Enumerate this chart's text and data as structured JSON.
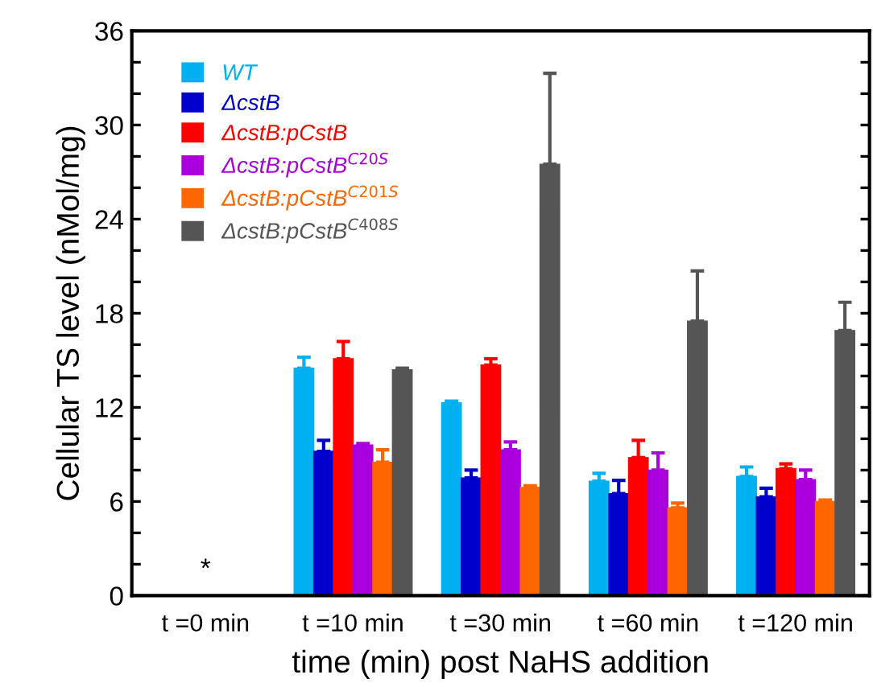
{
  "chart_data": {
    "type": "bar",
    "xlabel": "time (min) post NaHS addition",
    "ylabel": "Cellular TS level (nMol/mg)",
    "categories": [
      "t =0 min",
      "t =10 min",
      "t =30 min",
      "t =60 min",
      "t =120 min"
    ],
    "series": [
      {
        "name": "WT",
        "color": "#00b0f0",
        "values": [
          null,
          14.5,
          12.3,
          7.3,
          7.6
        ],
        "errors": [
          null,
          [
            14.5,
            15.2
          ],
          [
            12.3,
            12.4
          ],
          [
            7.3,
            7.8
          ],
          [
            7.6,
            8.2
          ]
        ]
      },
      {
        "name": "ΔcstB",
        "color": "#0000cc",
        "values": [
          null,
          9.2,
          7.5,
          6.5,
          6.3
        ],
        "errors": [
          null,
          [
            9.2,
            9.9
          ],
          [
            7.5,
            8.0
          ],
          [
            6.5,
            7.35
          ],
          [
            6.3,
            6.85
          ]
        ]
      },
      {
        "name": "ΔcstB:pCstB",
        "color": "#ff0000",
        "values": [
          null,
          15.1,
          14.7,
          8.8,
          8.1
        ],
        "errors": [
          null,
          [
            15.1,
            16.2
          ],
          [
            14.7,
            15.1
          ],
          [
            8.8,
            9.9
          ],
          [
            8.1,
            8.4
          ]
        ]
      },
      {
        "name": "ΔcstB:pCstB$^{C20S}$",
        "color": "#aa00dd",
        "values": [
          null,
          9.6,
          9.3,
          8.0,
          7.4
        ],
        "errors": [
          null,
          [
            9.6,
            9.7
          ],
          [
            9.3,
            9.8
          ],
          [
            8.0,
            9.1
          ],
          [
            7.4,
            8.0
          ]
        ]
      },
      {
        "name": "ΔcstB:pCstB$^{C201S}$",
        "color": "#ff6600",
        "values": [
          null,
          8.5,
          6.9,
          5.6,
          6.0
        ],
        "errors": [
          null,
          [
            8.5,
            9.3
          ],
          [
            6.9,
            7.0
          ],
          [
            5.6,
            5.9
          ],
          [
            6.0,
            6.1
          ]
        ]
      },
      {
        "name": "ΔcstB:pCstB$^{C408S}$",
        "color": "#555555",
        "values": [
          null,
          14.4,
          27.5,
          17.5,
          16.9
        ],
        "errors": [
          null,
          [
            14.4,
            14.5
          ],
          [
            27.5,
            33.3
          ],
          [
            17.5,
            20.7
          ],
          [
            16.9,
            18.7
          ]
        ]
      }
    ],
    "ylim": [
      0,
      36
    ],
    "yticks": [
      0,
      {
        "value": 2,
        "label": null
      },
      {
        "value": 4,
        "label": null
      },
      6,
      {
        "value": 8,
        "label": null
      },
      {
        "value": 10,
        "label": null
      },
      12,
      {
        "value": 14,
        "label": null
      },
      {
        "value": 16,
        "label": null
      },
      18,
      {
        "value": 20,
        "label": null
      },
      {
        "value": 22,
        "label": null
      },
      24,
      {
        "value": 26,
        "label": null
      },
      {
        "value": 28,
        "label": null
      },
      30,
      {
        "value": 32,
        "label": null
      },
      {
        "value": 34,
        "label": null
      },
      36
    ],
    "annotations": [
      "*"
    ],
    "legend": "top left",
    "grid": false
  }
}
